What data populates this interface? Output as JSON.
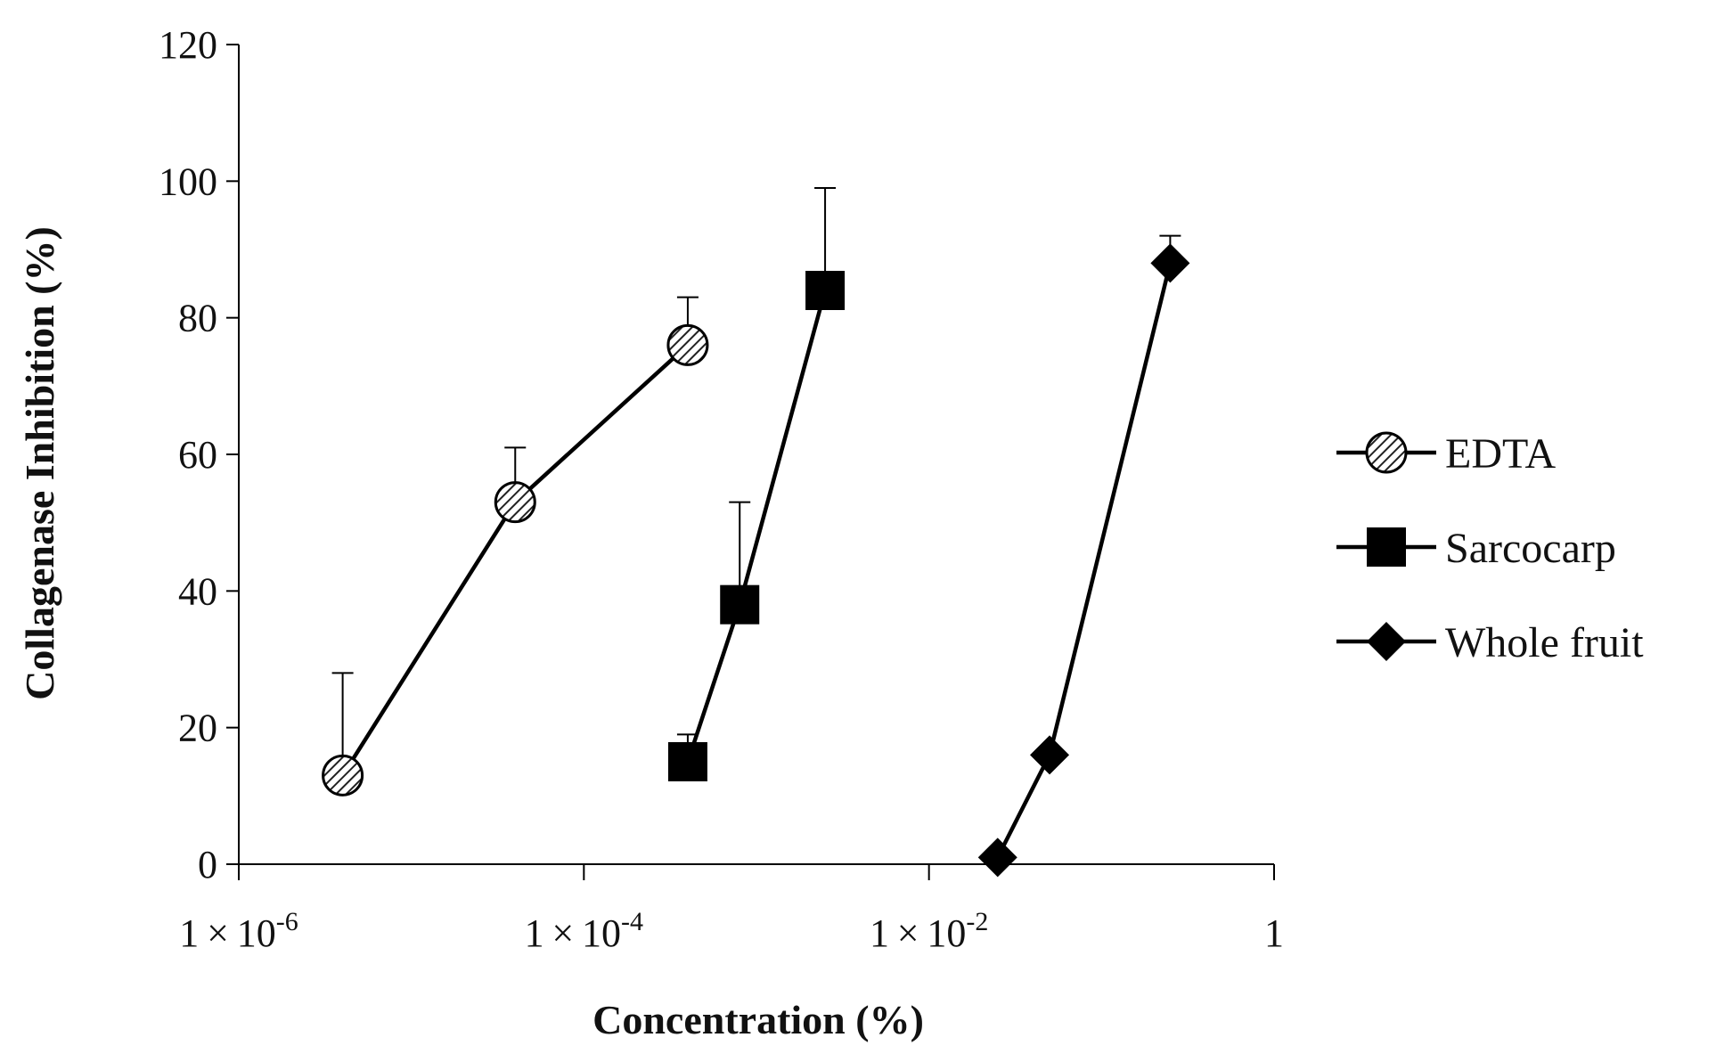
{
  "chart_data": {
    "type": "scatter",
    "title": "",
    "xlabel": "Concentration (%)",
    "ylabel": "Collagenase Inhibition (%)",
    "xscale": "log",
    "xlim_exponent": [
      -6,
      0
    ],
    "ylim": [
      0,
      120
    ],
    "yticks": [
      {
        "value": 0,
        "label": "0"
      },
      {
        "value": 20,
        "label": "20"
      },
      {
        "value": 40,
        "label": "40"
      },
      {
        "value": 60,
        "label": "60"
      },
      {
        "value": 80,
        "label": "80"
      },
      {
        "value": 100,
        "label": "100"
      },
      {
        "value": 120,
        "label": "120"
      }
    ],
    "xticks": [
      {
        "exp": -6,
        "mantissa": "1",
        "times": "×",
        "base": "10",
        "sup": "-6"
      },
      {
        "exp": -4,
        "mantissa": "1",
        "times": "×",
        "base": "10",
        "sup": "-4"
      },
      {
        "exp": -2,
        "mantissa": "1",
        "times": "×",
        "base": "10",
        "sup": "-2"
      },
      {
        "exp": 0,
        "label": "1"
      }
    ],
    "grid": false,
    "legend_position": "right",
    "series": [
      {
        "name": "EDTA",
        "marker": "hatched-circle",
        "points": [
          {
            "x": 4e-06,
            "y": 13,
            "err": 15
          },
          {
            "x": 4e-05,
            "y": 53,
            "err": 8
          },
          {
            "x": 0.0004,
            "y": 76,
            "err": 7
          }
        ]
      },
      {
        "name": "Sarcocarp",
        "marker": "square",
        "points": [
          {
            "x": 0.0004,
            "y": 15,
            "err": 4
          },
          {
            "x": 0.0008,
            "y": 38,
            "err": 15
          },
          {
            "x": 0.0025,
            "y": 84,
            "err": 15
          }
        ]
      },
      {
        "name": "Whole fruit",
        "marker": "diamond",
        "points": [
          {
            "x": 0.025,
            "y": 1,
            "err": 0
          },
          {
            "x": 0.05,
            "y": 16,
            "err": 0
          },
          {
            "x": 0.25,
            "y": 88,
            "err": 4
          }
        ]
      }
    ]
  },
  "colors": {
    "line": "#000000",
    "marker_fill": "#000000",
    "hatch_bg": "#ffffff",
    "hatch_line": "#222222"
  }
}
